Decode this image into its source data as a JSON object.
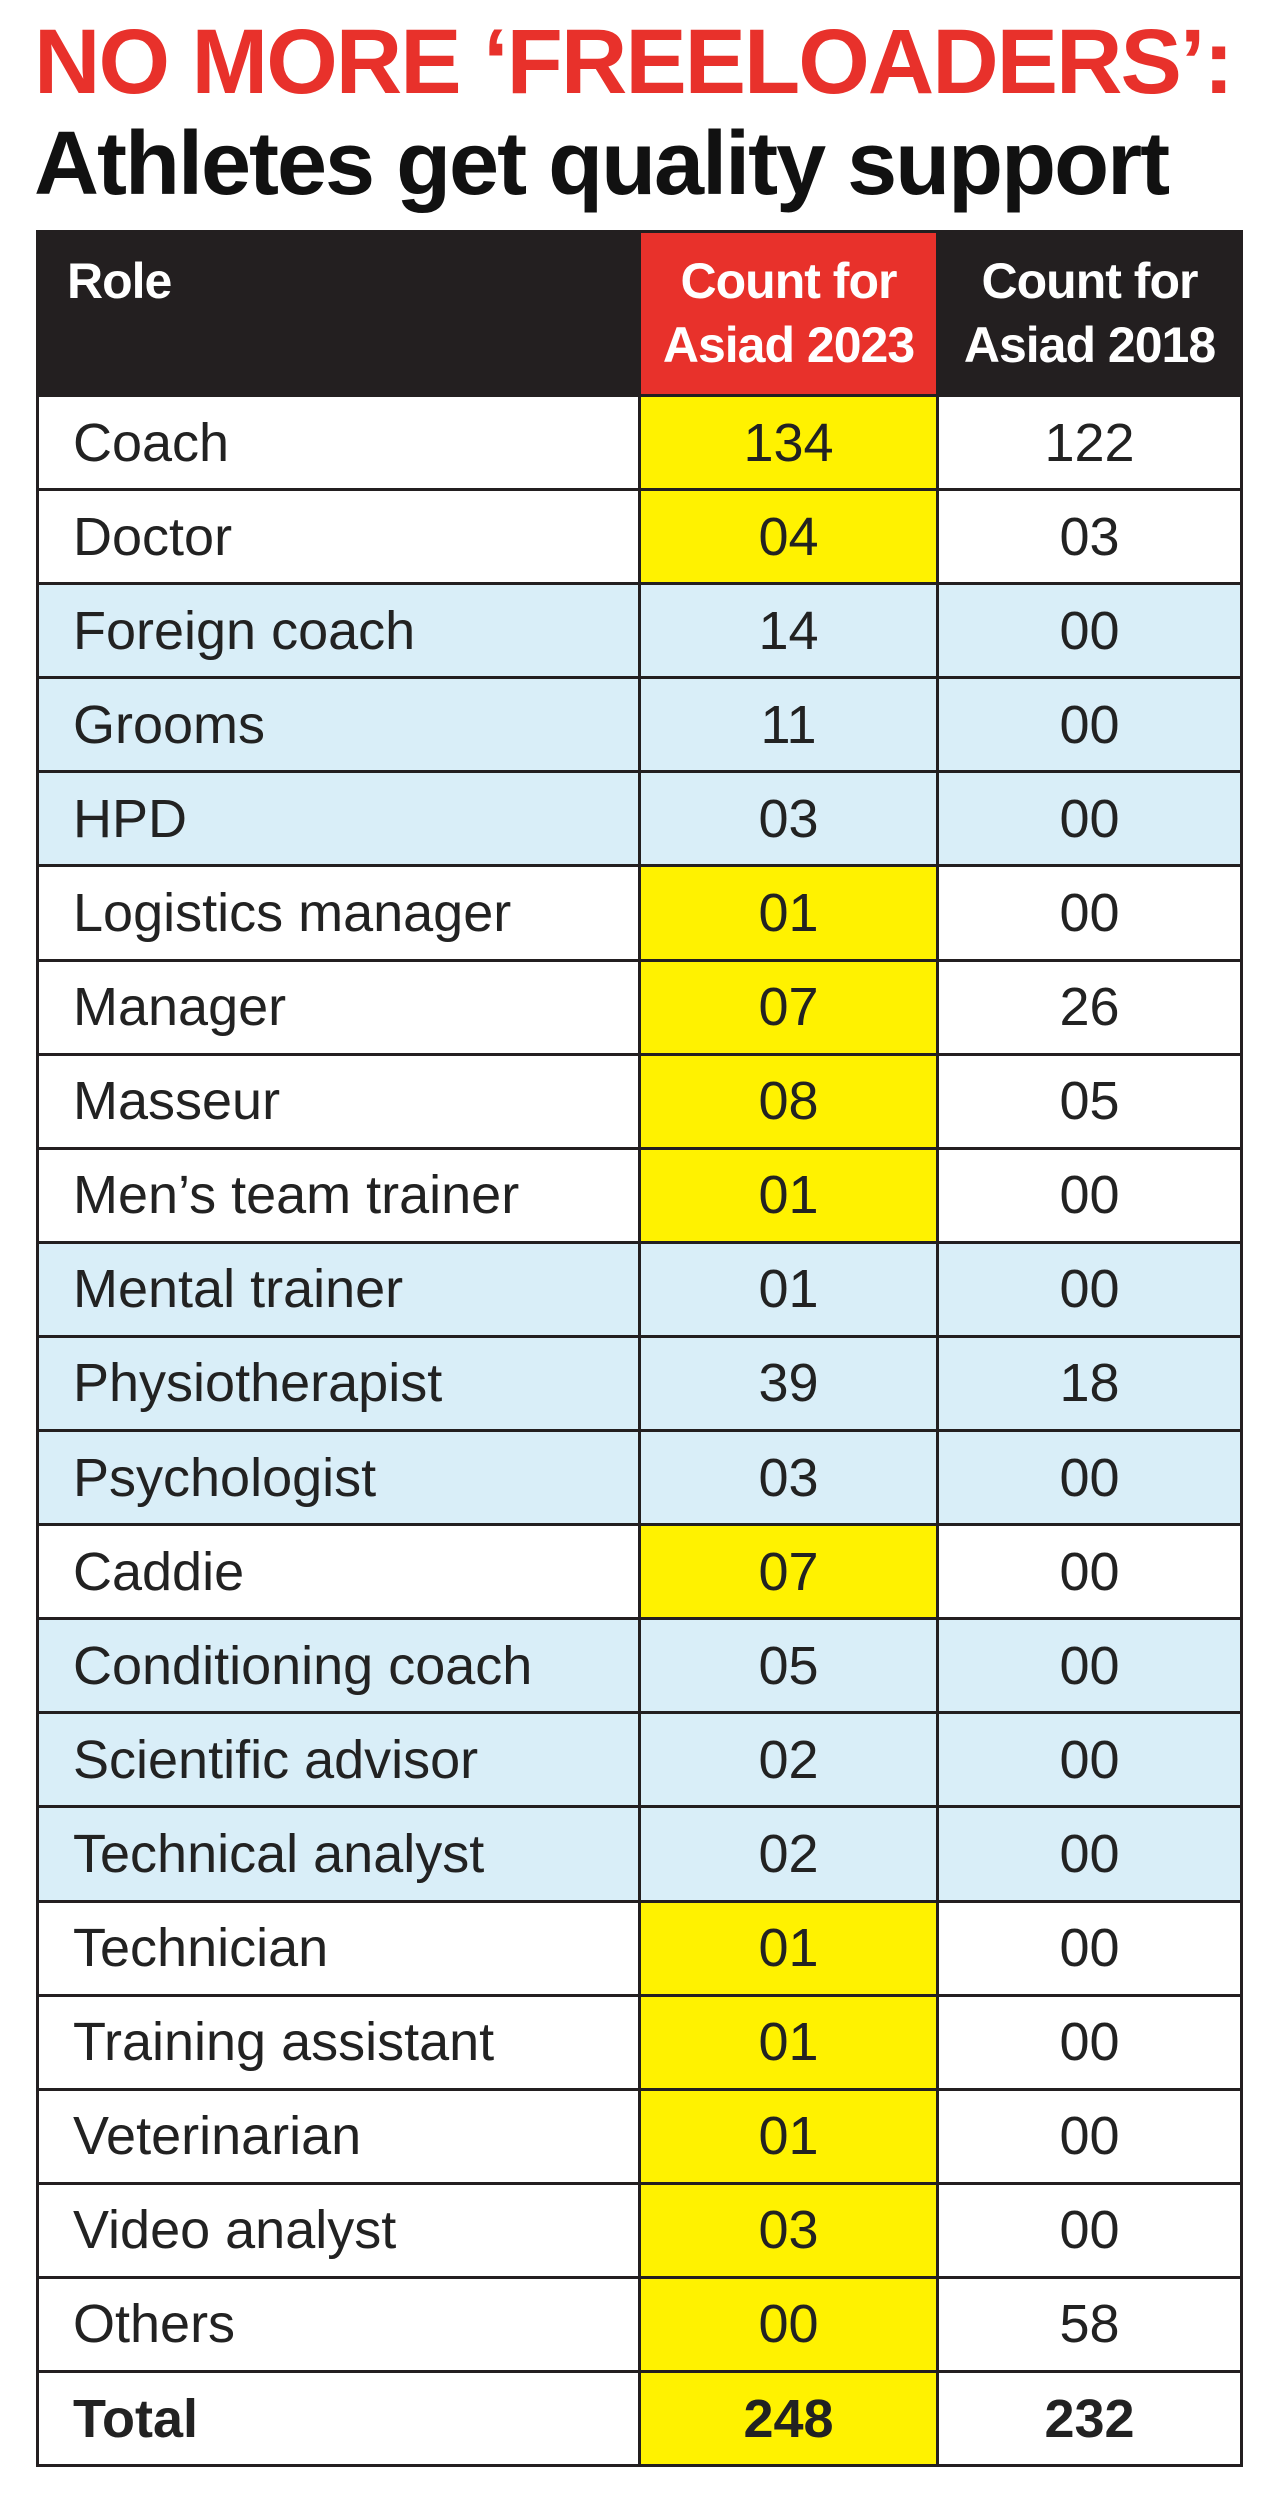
{
  "title_line1": "NO MORE ‘FREELOADERS’:",
  "title_line2": "Athletes get quality support",
  "colors": {
    "title_red": "#e8312b",
    "header_dark": "#231f20",
    "header_2023": "#e8312b",
    "highlight_yellow": "#fff200",
    "row_blue": "#d9eef8",
    "row_white": "#ffffff"
  },
  "chart_data": {
    "type": "table",
    "title": "NO MORE ‘FREELOADERS’: Athletes get quality support",
    "columns": [
      "Role",
      "Count for Asiad 2023",
      "Count for Asiad 2018"
    ],
    "header": {
      "role": "Role",
      "c2023_line1": "Count for",
      "c2023_line2": "Asiad 2023",
      "c2018_line1": "Count for",
      "c2018_line2": "Asiad 2018"
    },
    "rows": [
      {
        "role": "Coach",
        "c2023": "134",
        "c2018": "122",
        "shade": "white",
        "highlight": true
      },
      {
        "role": "Doctor",
        "c2023": "04",
        "c2018": "03",
        "shade": "white",
        "highlight": true
      },
      {
        "role": "Foreign coach",
        "c2023": "14",
        "c2018": "00",
        "shade": "blue",
        "highlight": false
      },
      {
        "role": "Grooms",
        "c2023": "11",
        "c2018": "00",
        "shade": "blue",
        "highlight": false
      },
      {
        "role": "HPD",
        "c2023": "03",
        "c2018": "00",
        "shade": "blue",
        "highlight": false
      },
      {
        "role": "Logistics manager",
        "c2023": "01",
        "c2018": "00",
        "shade": "white",
        "highlight": true
      },
      {
        "role": "Manager",
        "c2023": "07",
        "c2018": "26",
        "shade": "white",
        "highlight": true
      },
      {
        "role": "Masseur",
        "c2023": "08",
        "c2018": "05",
        "shade": "white",
        "highlight": true
      },
      {
        "role": "Men’s team trainer",
        "c2023": "01",
        "c2018": "00",
        "shade": "white",
        "highlight": true
      },
      {
        "role": "Mental trainer",
        "c2023": "01",
        "c2018": "00",
        "shade": "blue",
        "highlight": false
      },
      {
        "role": "Physiotherapist",
        "c2023": "39",
        "c2018": "18",
        "shade": "blue",
        "highlight": false
      },
      {
        "role": "Psychologist",
        "c2023": "03",
        "c2018": "00",
        "shade": "blue",
        "highlight": false
      },
      {
        "role": "Caddie",
        "c2023": "07",
        "c2018": "00",
        "shade": "white",
        "highlight": true
      },
      {
        "role": "Conditioning coach",
        "c2023": "05",
        "c2018": "00",
        "shade": "blue",
        "highlight": false
      },
      {
        "role": "Scientific advisor",
        "c2023": "02",
        "c2018": "00",
        "shade": "blue",
        "highlight": false
      },
      {
        "role": "Technical analyst",
        "c2023": "02",
        "c2018": "00",
        "shade": "blue",
        "highlight": false
      },
      {
        "role": "Technician",
        "c2023": "01",
        "c2018": "00",
        "shade": "white",
        "highlight": true
      },
      {
        "role": "Training assistant",
        "c2023": "01",
        "c2018": "00",
        "shade": "white",
        "highlight": true
      },
      {
        "role": "Veterinarian",
        "c2023": "01",
        "c2018": "00",
        "shade": "white",
        "highlight": true
      },
      {
        "role": "Video analyst",
        "c2023": "03",
        "c2018": "00",
        "shade": "white",
        "highlight": true
      },
      {
        "role": "Others",
        "c2023": "00",
        "c2018": "58",
        "shade": "white",
        "highlight": true
      }
    ],
    "total": {
      "role": "Total",
      "c2023": "248",
      "c2018": "232",
      "highlight": true
    }
  }
}
